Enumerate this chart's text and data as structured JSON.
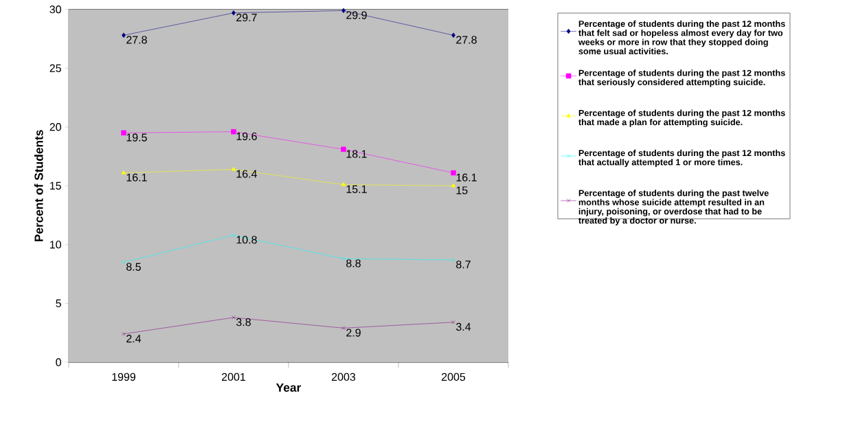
{
  "chart_data": {
    "type": "line",
    "xlabel": "Year",
    "ylabel": "Percent of Students",
    "categories": [
      "1999",
      "2001",
      "2003",
      "2005"
    ],
    "series": [
      {
        "name": "Percentage of students during the past 12 months that felt sad or hopeless almost every day for two weeks or more in row that they stopped doing some usual activities.",
        "color": "#000080",
        "marker": "diamond",
        "values": [
          27.8,
          29.7,
          29.9,
          27.8
        ]
      },
      {
        "name": "Percentage of students during the past 12 months that seriously considered attempting suicide.",
        "color": "#ff00ff",
        "marker": "square",
        "values": [
          19.5,
          19.6,
          18.1,
          16.1
        ]
      },
      {
        "name": "Percentage of students during the past 12 months that made a plan for attempting suicide.",
        "color": "#ffff00",
        "marker": "triangle",
        "values": [
          16.1,
          16.4,
          15.1,
          15
        ]
      },
      {
        "name": "Percentage of students during the past 12 months that actually attempted 1 or more times.",
        "color": "#00ffff",
        "marker": "cross",
        "values": [
          8.5,
          10.8,
          8.8,
          8.7
        ]
      },
      {
        "name": "Percentage of students during the past twelve months whose suicide attempt resulted in an injury, poisoning, or overdose that had to be treated by a doctor or nurse.",
        "color": "#800080",
        "marker": "cross",
        "values": [
          2.4,
          3.8,
          2.9,
          3.4
        ]
      }
    ],
    "ylim": [
      0,
      30
    ],
    "yticks": [
      0,
      5,
      10,
      15,
      20,
      25,
      30
    ],
    "grid": "y",
    "legend": "right",
    "data_labels": true
  }
}
